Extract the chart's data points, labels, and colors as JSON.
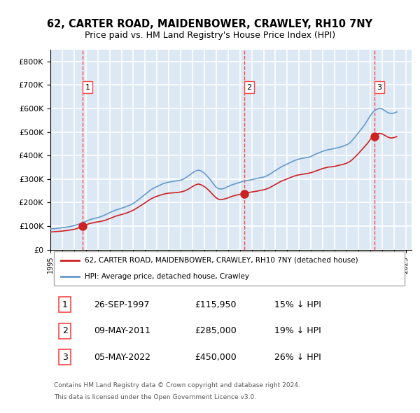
{
  "title": "62, CARTER ROAD, MAIDENBOWER, CRAWLEY, RH10 7NY",
  "subtitle": "Price paid vs. HM Land Registry's House Price Index (HPI)",
  "hpi_label": "HPI: Average price, detached house, Crawley",
  "price_label": "62, CARTER ROAD, MAIDENBOWER, CRAWLEY, RH10 7NY (detached house)",
  "footer1": "Contains HM Land Registry data © Crown copyright and database right 2024.",
  "footer2": "This data is licensed under the Open Government Licence v3.0.",
  "ylim": [
    0,
    850000
  ],
  "yticks": [
    0,
    100000,
    200000,
    300000,
    400000,
    500000,
    600000,
    700000,
    800000
  ],
  "sales": [
    {
      "num": 1,
      "date": "26-SEP-1997",
      "price": 115950,
      "pct": "15%",
      "dir": "↓",
      "x_year": 1997.74
    },
    {
      "num": 2,
      "date": "09-MAY-2011",
      "price": 285000,
      "pct": "19%",
      "dir": "↓",
      "x_year": 2011.36
    },
    {
      "num": 3,
      "date": "05-MAY-2022",
      "price": 450000,
      "pct": "26%",
      "dir": "↓",
      "x_year": 2022.36
    }
  ],
  "hpi_color": "#6699cc",
  "price_color": "#cc2222",
  "sale_dot_color": "#cc2222",
  "vline_color": "#ff4444",
  "bg_color": "#dce9f5",
  "plot_bg": "#dce9f5",
  "grid_color": "#ffffff",
  "xlim_start": 1995.0,
  "xlim_end": 2025.5,
  "hpi_x": [
    1995.0,
    1995.25,
    1995.5,
    1995.75,
    1996.0,
    1996.25,
    1996.5,
    1996.75,
    1997.0,
    1997.25,
    1997.5,
    1997.75,
    1998.0,
    1998.25,
    1998.5,
    1998.75,
    1999.0,
    1999.25,
    1999.5,
    1999.75,
    2000.0,
    2000.25,
    2000.5,
    2000.75,
    2001.0,
    2001.25,
    2001.5,
    2001.75,
    2002.0,
    2002.25,
    2002.5,
    2002.75,
    2003.0,
    2003.25,
    2003.5,
    2003.75,
    2004.0,
    2004.25,
    2004.5,
    2004.75,
    2005.0,
    2005.25,
    2005.5,
    2005.75,
    2006.0,
    2006.25,
    2006.5,
    2006.75,
    2007.0,
    2007.25,
    2007.5,
    2007.75,
    2008.0,
    2008.25,
    2008.5,
    2008.75,
    2009.0,
    2009.25,
    2009.5,
    2009.75,
    2010.0,
    2010.25,
    2010.5,
    2010.75,
    2011.0,
    2011.25,
    2011.5,
    2011.75,
    2012.0,
    2012.25,
    2012.5,
    2012.75,
    2013.0,
    2013.25,
    2013.5,
    2013.75,
    2014.0,
    2014.25,
    2014.5,
    2014.75,
    2015.0,
    2015.25,
    2015.5,
    2015.75,
    2016.0,
    2016.25,
    2016.5,
    2016.75,
    2017.0,
    2017.25,
    2017.5,
    2017.75,
    2018.0,
    2018.25,
    2018.5,
    2018.75,
    2019.0,
    2019.25,
    2019.5,
    2019.75,
    2020.0,
    2020.25,
    2020.5,
    2020.75,
    2021.0,
    2021.25,
    2021.5,
    2021.75,
    2022.0,
    2022.25,
    2022.5,
    2022.75,
    2023.0,
    2023.25,
    2023.5,
    2023.75,
    2024.0,
    2024.25
  ],
  "hpi_y": [
    88000,
    88500,
    90000,
    91500,
    93000,
    95000,
    97000,
    99000,
    102000,
    106000,
    110000,
    115000,
    120000,
    126000,
    130000,
    133000,
    136000,
    140000,
    145000,
    151000,
    157000,
    163000,
    168000,
    172000,
    176000,
    180000,
    185000,
    190000,
    196000,
    205000,
    215000,
    225000,
    235000,
    245000,
    255000,
    262000,
    268000,
    274000,
    280000,
    284000,
    287000,
    289000,
    291000,
    293000,
    295000,
    300000,
    308000,
    317000,
    326000,
    334000,
    338000,
    334000,
    325000,
    312000,
    298000,
    280000,
    265000,
    258000,
    258000,
    262000,
    268000,
    274000,
    278000,
    282000,
    286000,
    290000,
    293000,
    295000,
    297000,
    300000,
    303000,
    306000,
    308000,
    313000,
    320000,
    328000,
    336000,
    344000,
    352000,
    358000,
    364000,
    370000,
    376000,
    381000,
    385000,
    388000,
    390000,
    392000,
    396000,
    402000,
    408000,
    413000,
    418000,
    422000,
    425000,
    427000,
    430000,
    433000,
    436000,
    440000,
    445000,
    452000,
    465000,
    480000,
    496000,
    512000,
    528000,
    548000,
    568000,
    585000,
    595000,
    600000,
    598000,
    590000,
    582000,
    578000,
    580000,
    585000
  ],
  "price_x": [
    1995.0,
    1995.25,
    1995.5,
    1995.75,
    1996.0,
    1996.25,
    1996.5,
    1996.75,
    1997.0,
    1997.25,
    1997.5,
    1997.75,
    1998.0,
    1998.25,
    1998.5,
    1998.75,
    1999.0,
    1999.25,
    1999.5,
    1999.75,
    2000.0,
    2000.25,
    2000.5,
    2000.75,
    2001.0,
    2001.25,
    2001.5,
    2001.75,
    2002.0,
    2002.25,
    2002.5,
    2002.75,
    2003.0,
    2003.25,
    2003.5,
    2003.75,
    2004.0,
    2004.25,
    2004.5,
    2004.75,
    2005.0,
    2005.25,
    2005.5,
    2005.75,
    2006.0,
    2006.25,
    2006.5,
    2006.75,
    2007.0,
    2007.25,
    2007.5,
    2007.75,
    2008.0,
    2008.25,
    2008.5,
    2008.75,
    2009.0,
    2009.25,
    2009.5,
    2009.75,
    2010.0,
    2010.25,
    2010.5,
    2010.75,
    2011.0,
    2011.25,
    2011.5,
    2011.75,
    2012.0,
    2012.25,
    2012.5,
    2012.75,
    2013.0,
    2013.25,
    2013.5,
    2013.75,
    2014.0,
    2014.25,
    2014.5,
    2014.75,
    2015.0,
    2015.25,
    2015.5,
    2015.75,
    2016.0,
    2016.25,
    2016.5,
    2016.75,
    2017.0,
    2017.25,
    2017.5,
    2017.75,
    2018.0,
    2018.25,
    2018.5,
    2018.75,
    2019.0,
    2019.25,
    2019.5,
    2019.75,
    2020.0,
    2020.25,
    2020.5,
    2020.75,
    2021.0,
    2021.25,
    2021.5,
    2021.75,
    2022.0,
    2022.25,
    2022.5,
    2022.75,
    2023.0,
    2023.25,
    2023.5,
    2023.75,
    2024.0,
    2024.25
  ],
  "price_y": [
    75000,
    76000,
    77000,
    78000,
    79000,
    80500,
    82000,
    84000,
    86500,
    90000,
    95000,
    100000,
    105000,
    110000,
    113000,
    116000,
    118000,
    120000,
    123000,
    127000,
    132000,
    137000,
    142000,
    146000,
    149000,
    153000,
    157000,
    162000,
    168000,
    175000,
    183000,
    191000,
    199000,
    208000,
    216000,
    222000,
    227000,
    231000,
    235000,
    238000,
    240000,
    241000,
    242000,
    243000,
    245000,
    248000,
    253000,
    260000,
    268000,
    275000,
    279000,
    275000,
    268000,
    258000,
    246000,
    232000,
    220000,
    213000,
    213000,
    216000,
    220000,
    225000,
    229000,
    232000,
    235000,
    238000,
    241000,
    243000,
    245000,
    247000,
    249000,
    252000,
    254000,
    258000,
    263000,
    270000,
    277000,
    284000,
    291000,
    296000,
    301000,
    306000,
    311000,
    315000,
    318000,
    320000,
    322000,
    324000,
    327000,
    331000,
    336000,
    340000,
    345000,
    348000,
    351000,
    352000,
    354000,
    357000,
    360000,
    363000,
    367000,
    373000,
    383000,
    395000,
    408000,
    422000,
    436000,
    450000,
    467000,
    482000,
    490000,
    494000,
    492000,
    485000,
    478000,
    474000,
    476000,
    480000
  ]
}
